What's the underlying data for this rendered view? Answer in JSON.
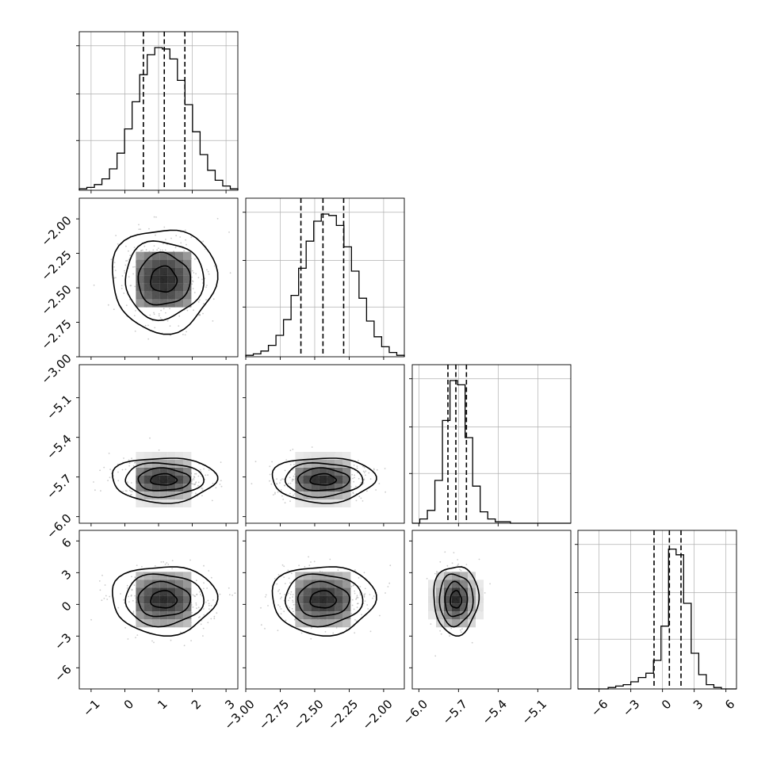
{
  "chart_data": {
    "type": "corner",
    "parameters": [
      {
        "ticks": [
          -1,
          0,
          1,
          2,
          3
        ],
        "tick_labels": [
          "−1",
          "0",
          "1",
          "2",
          "3"
        ],
        "range": [
          -1.35,
          3.35
        ],
        "hist_quantiles": [
          0.55,
          1.17,
          1.78
        ],
        "mean": 1.15,
        "sd": 0.62
      },
      {
        "ticks": [
          -3.0,
          -2.75,
          -2.5,
          -2.25,
          -2.0
        ],
        "tick_labels": [
          "−3.00",
          "−2.75",
          "−2.50",
          "−2.25",
          "−2.00"
        ],
        "range": [
          -3.0,
          -1.85
        ],
        "hist_quantiles": [
          -2.6,
          -2.44,
          -2.29
        ],
        "mean": -2.44,
        "sd": 0.15
      },
      {
        "ticks": [
          -6.0,
          -5.7,
          -5.4,
          -5.1
        ],
        "tick_labels": [
          "−6.0",
          "−5.7",
          "−5.4",
          "−5.1"
        ],
        "range": [
          -6.05,
          -4.85
        ],
        "hist_quantiles": [
          -5.78,
          -5.72,
          -5.64
        ],
        "mean": -5.72,
        "sd": 0.068
      },
      {
        "ticks": [
          -6,
          -3,
          0,
          3,
          6
        ],
        "tick_labels": [
          "−6",
          "−3",
          "0",
          "3",
          "6"
        ],
        "range": [
          -8.0,
          7.0
        ],
        "hist_quantiles": [
          -0.8,
          0.65,
          1.75
        ],
        "mean": 0.45,
        "sd": 1.3
      }
    ],
    "histograms": [
      [
        0.01,
        0.02,
        0.04,
        0.08,
        0.15,
        0.26,
        0.43,
        0.62,
        0.81,
        0.95,
        1.0,
        0.99,
        0.92,
        0.77,
        0.6,
        0.41,
        0.25,
        0.14,
        0.07,
        0.03,
        0.01
      ],
      [
        0.01,
        0.02,
        0.04,
        0.08,
        0.15,
        0.26,
        0.43,
        0.62,
        0.81,
        0.95,
        1.0,
        0.99,
        0.92,
        0.77,
        0.6,
        0.41,
        0.25,
        0.14,
        0.07,
        0.03,
        0.01
      ],
      [
        0.0,
        0.03,
        0.09,
        0.3,
        0.72,
        1.0,
        0.97,
        0.6,
        0.26,
        0.08,
        0.03,
        0.01,
        0.01,
        0.0,
        0.0,
        0.0,
        0.0,
        0.0,
        0.0,
        0.0,
        0.0
      ],
      [
        0.0,
        0.0,
        0.0,
        0.0,
        0.01,
        0.02,
        0.03,
        0.05,
        0.08,
        0.11,
        0.2,
        0.44,
        0.98,
        0.94,
        0.6,
        0.25,
        0.1,
        0.03,
        0.01,
        0.0,
        0.0
      ]
    ],
    "contour_levels_sigma": [
      0.5,
      1.0,
      1.5,
      2.0
    ],
    "grid": true
  }
}
